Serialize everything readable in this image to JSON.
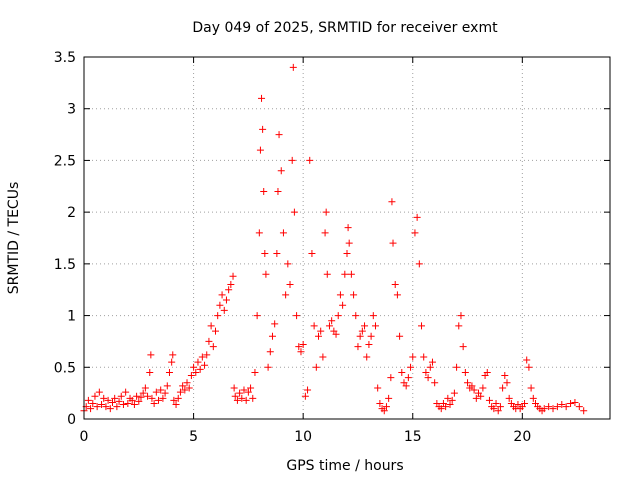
{
  "chart_data": {
    "type": "scatter",
    "title": "Day 049 of 2025, SRMTID for receiver exmt",
    "xlabel": "GPS time / hours",
    "ylabel": "SRMTID / TECUs",
    "xlim": [
      0,
      24
    ],
    "ylim": [
      0,
      3.5
    ],
    "xticks": [
      0,
      5,
      10,
      15,
      20
    ],
    "xtick_labels": [
      "0",
      "5",
      "10",
      "15",
      "20"
    ],
    "yticks": [
      0,
      0.5,
      1,
      1.5,
      2,
      2.5,
      3,
      3.5
    ],
    "ytick_labels": [
      "0",
      "0.5",
      "1",
      "1.5",
      "2",
      "2.5",
      "3",
      "3.5"
    ],
    "grid": true,
    "marker": "+",
    "series": [
      {
        "name": "SRMTID",
        "color": "#ff0000",
        "points": [
          [
            0.0,
            0.08
          ],
          [
            0.1,
            0.12
          ],
          [
            0.2,
            0.18
          ],
          [
            0.3,
            0.1
          ],
          [
            0.4,
            0.15
          ],
          [
            0.5,
            0.22
          ],
          [
            0.6,
            0.12
          ],
          [
            0.7,
            0.26
          ],
          [
            0.8,
            0.14
          ],
          [
            0.9,
            0.2
          ],
          [
            1.0,
            0.12
          ],
          [
            1.1,
            0.18
          ],
          [
            1.2,
            0.1
          ],
          [
            1.3,
            0.16
          ],
          [
            1.4,
            0.2
          ],
          [
            1.5,
            0.12
          ],
          [
            1.6,
            0.17
          ],
          [
            1.7,
            0.22
          ],
          [
            1.8,
            0.14
          ],
          [
            1.9,
            0.26
          ],
          [
            2.0,
            0.15
          ],
          [
            2.1,
            0.2
          ],
          [
            2.2,
            0.18
          ],
          [
            2.3,
            0.14
          ],
          [
            2.4,
            0.22
          ],
          [
            2.5,
            0.17
          ],
          [
            2.6,
            0.21
          ],
          [
            2.7,
            0.25
          ],
          [
            2.8,
            0.3
          ],
          [
            2.9,
            0.22
          ],
          [
            3.0,
            0.45
          ],
          [
            3.05,
            0.62
          ],
          [
            3.1,
            0.2
          ],
          [
            3.2,
            0.15
          ],
          [
            3.3,
            0.26
          ],
          [
            3.4,
            0.18
          ],
          [
            3.5,
            0.28
          ],
          [
            3.6,
            0.2
          ],
          [
            3.7,
            0.25
          ],
          [
            3.8,
            0.32
          ],
          [
            3.9,
            0.45
          ],
          [
            4.0,
            0.55
          ],
          [
            4.05,
            0.62
          ],
          [
            4.1,
            0.18
          ],
          [
            4.2,
            0.14
          ],
          [
            4.3,
            0.2
          ],
          [
            4.4,
            0.26
          ],
          [
            4.5,
            0.32
          ],
          [
            4.6,
            0.28
          ],
          [
            4.7,
            0.35
          ],
          [
            4.8,
            0.3
          ],
          [
            4.9,
            0.42
          ],
          [
            5.0,
            0.5
          ],
          [
            5.1,
            0.45
          ],
          [
            5.2,
            0.55
          ],
          [
            5.3,
            0.48
          ],
          [
            5.4,
            0.6
          ],
          [
            5.5,
            0.52
          ],
          [
            5.6,
            0.62
          ],
          [
            5.7,
            0.75
          ],
          [
            5.8,
            0.9
          ],
          [
            5.9,
            0.7
          ],
          [
            6.0,
            0.85
          ],
          [
            6.1,
            1.0
          ],
          [
            6.2,
            1.1
          ],
          [
            6.3,
            1.2
          ],
          [
            6.4,
            1.05
          ],
          [
            6.5,
            1.15
          ],
          [
            6.6,
            1.25
          ],
          [
            6.7,
            1.3
          ],
          [
            6.8,
            1.38
          ],
          [
            6.85,
            0.3
          ],
          [
            6.9,
            0.22
          ],
          [
            7.0,
            0.18
          ],
          [
            7.1,
            0.25
          ],
          [
            7.2,
            0.2
          ],
          [
            7.3,
            0.28
          ],
          [
            7.4,
            0.18
          ],
          [
            7.5,
            0.26
          ],
          [
            7.6,
            0.3
          ],
          [
            7.7,
            0.2
          ],
          [
            7.8,
            0.45
          ],
          [
            7.9,
            1.0
          ],
          [
            8.0,
            1.8
          ],
          [
            8.05,
            2.6
          ],
          [
            8.1,
            3.1
          ],
          [
            8.15,
            2.8
          ],
          [
            8.2,
            2.2
          ],
          [
            8.25,
            1.6
          ],
          [
            8.3,
            1.4
          ],
          [
            8.4,
            0.5
          ],
          [
            8.5,
            0.65
          ],
          [
            8.6,
            0.8
          ],
          [
            8.7,
            0.92
          ],
          [
            8.8,
            1.6
          ],
          [
            8.85,
            2.2
          ],
          [
            8.9,
            2.75
          ],
          [
            9.0,
            2.4
          ],
          [
            9.1,
            1.8
          ],
          [
            9.2,
            1.2
          ],
          [
            9.3,
            1.5
          ],
          [
            9.4,
            1.3
          ],
          [
            9.5,
            2.5
          ],
          [
            9.55,
            3.4
          ],
          [
            9.6,
            2.0
          ],
          [
            9.7,
            1.0
          ],
          [
            9.8,
            0.7
          ],
          [
            9.9,
            0.65
          ],
          [
            10.0,
            0.72
          ],
          [
            10.1,
            0.22
          ],
          [
            10.2,
            0.28
          ],
          [
            10.3,
            2.5
          ],
          [
            10.4,
            1.6
          ],
          [
            10.5,
            0.9
          ],
          [
            10.6,
            0.5
          ],
          [
            10.7,
            0.8
          ],
          [
            10.8,
            0.85
          ],
          [
            10.9,
            0.6
          ],
          [
            11.0,
            1.8
          ],
          [
            11.05,
            2.0
          ],
          [
            11.1,
            1.4
          ],
          [
            11.2,
            0.9
          ],
          [
            11.3,
            0.95
          ],
          [
            11.4,
            0.85
          ],
          [
            11.5,
            0.82
          ],
          [
            11.6,
            1.0
          ],
          [
            11.7,
            1.2
          ],
          [
            11.8,
            1.1
          ],
          [
            11.9,
            1.4
          ],
          [
            12.0,
            1.6
          ],
          [
            12.05,
            1.85
          ],
          [
            12.1,
            1.7
          ],
          [
            12.2,
            1.4
          ],
          [
            12.3,
            1.2
          ],
          [
            12.4,
            1.0
          ],
          [
            12.5,
            0.7
          ],
          [
            12.6,
            0.8
          ],
          [
            12.7,
            0.85
          ],
          [
            12.8,
            0.9
          ],
          [
            12.9,
            0.6
          ],
          [
            13.0,
            0.72
          ],
          [
            13.1,
            0.8
          ],
          [
            13.2,
            1.0
          ],
          [
            13.3,
            0.9
          ],
          [
            13.4,
            0.3
          ],
          [
            13.5,
            0.15
          ],
          [
            13.6,
            0.1
          ],
          [
            13.7,
            0.08
          ],
          [
            13.8,
            0.12
          ],
          [
            13.9,
            0.2
          ],
          [
            14.0,
            0.4
          ],
          [
            14.05,
            2.1
          ],
          [
            14.1,
            1.7
          ],
          [
            14.2,
            1.3
          ],
          [
            14.3,
            1.2
          ],
          [
            14.4,
            0.8
          ],
          [
            14.5,
            0.45
          ],
          [
            14.6,
            0.35
          ],
          [
            14.7,
            0.32
          ],
          [
            14.8,
            0.4
          ],
          [
            14.9,
            0.5
          ],
          [
            15.0,
            0.6
          ],
          [
            15.1,
            1.8
          ],
          [
            15.2,
            1.95
          ],
          [
            15.3,
            1.5
          ],
          [
            15.4,
            0.9
          ],
          [
            15.5,
            0.6
          ],
          [
            15.6,
            0.45
          ],
          [
            15.7,
            0.4
          ],
          [
            15.8,
            0.5
          ],
          [
            15.9,
            0.55
          ],
          [
            16.0,
            0.35
          ],
          [
            16.1,
            0.15
          ],
          [
            16.2,
            0.12
          ],
          [
            16.3,
            0.1
          ],
          [
            16.4,
            0.15
          ],
          [
            16.5,
            0.12
          ],
          [
            16.6,
            0.2
          ],
          [
            16.7,
            0.14
          ],
          [
            16.8,
            0.18
          ],
          [
            16.9,
            0.25
          ],
          [
            17.0,
            0.5
          ],
          [
            17.1,
            0.9
          ],
          [
            17.2,
            1.0
          ],
          [
            17.3,
            0.7
          ],
          [
            17.4,
            0.45
          ],
          [
            17.5,
            0.35
          ],
          [
            17.6,
            0.3
          ],
          [
            17.7,
            0.32
          ],
          [
            17.8,
            0.28
          ],
          [
            17.9,
            0.2
          ],
          [
            18.0,
            0.25
          ],
          [
            18.1,
            0.22
          ],
          [
            18.2,
            0.3
          ],
          [
            18.3,
            0.42
          ],
          [
            18.4,
            0.45
          ],
          [
            18.5,
            0.18
          ],
          [
            18.6,
            0.12
          ],
          [
            18.7,
            0.1
          ],
          [
            18.8,
            0.15
          ],
          [
            18.9,
            0.08
          ],
          [
            19.0,
            0.12
          ],
          [
            19.1,
            0.3
          ],
          [
            19.2,
            0.42
          ],
          [
            19.3,
            0.35
          ],
          [
            19.4,
            0.2
          ],
          [
            19.5,
            0.15
          ],
          [
            19.6,
            0.12
          ],
          [
            19.7,
            0.1
          ],
          [
            19.8,
            0.14
          ],
          [
            19.9,
            0.1
          ],
          [
            20.0,
            0.12
          ],
          [
            20.1,
            0.15
          ],
          [
            20.2,
            0.57
          ],
          [
            20.3,
            0.5
          ],
          [
            20.4,
            0.3
          ],
          [
            20.5,
            0.2
          ],
          [
            20.6,
            0.15
          ],
          [
            20.7,
            0.12
          ],
          [
            20.8,
            0.1
          ],
          [
            20.9,
            0.08
          ],
          [
            21.0,
            0.1
          ],
          [
            21.2,
            0.12
          ],
          [
            21.4,
            0.1
          ],
          [
            21.6,
            0.12
          ],
          [
            21.8,
            0.14
          ],
          [
            22.0,
            0.12
          ],
          [
            22.2,
            0.15
          ],
          [
            22.4,
            0.16
          ],
          [
            22.6,
            0.12
          ],
          [
            22.8,
            0.08
          ]
        ]
      }
    ]
  }
}
